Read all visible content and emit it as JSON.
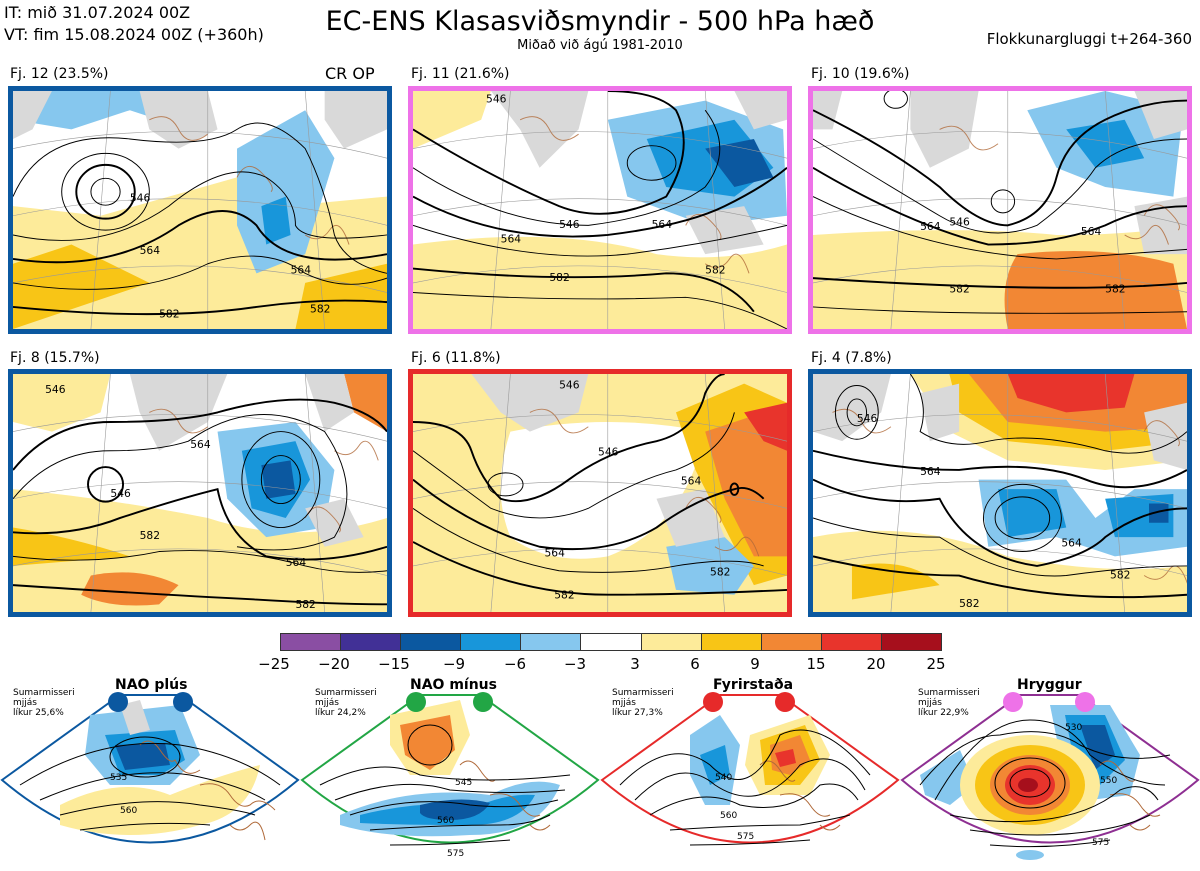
{
  "header": {
    "it_line": "IT: mið 31.07.2024 00Z",
    "vt_line": "VT: fim 15.08.2024 00Z  (+360h)",
    "title": "EC-ENS Klasasviðsmyndir - 500 hPa hæð",
    "subtitle": "Miðað við ágú 1981-2010",
    "window": "Flokkunargluggi t+264-360"
  },
  "panels": [
    {
      "label": "Fj. 12 (23.5%)",
      "frame_color": "#0b58a0",
      "extra": "CR OP",
      "contours": [
        "546",
        "564",
        "564",
        "582",
        "582"
      ]
    },
    {
      "label": "Fj. 11 (21.6%)",
      "frame_color": "#ee72e8",
      "contours": [
        "546",
        "546",
        "564",
        "564",
        "582",
        "582"
      ]
    },
    {
      "label": "Fj. 10 (19.6%)",
      "frame_color": "#ee72e8",
      "contours": [
        "546",
        "564",
        "564",
        "582",
        "582"
      ]
    },
    {
      "label": "Fj. 8 (15.7%)",
      "frame_color": "#0b58a0",
      "contours": [
        "546",
        "546",
        "564",
        "564",
        "582",
        "582"
      ]
    },
    {
      "label": "Fj. 6 (11.8%)",
      "frame_color": "#e62a2a",
      "contours": [
        "546",
        "546",
        "564",
        "564",
        "582",
        "582"
      ]
    },
    {
      "label": "Fj. 4 (7.8%)",
      "frame_color": "#0b58a0",
      "contours": [
        "546",
        "564",
        "564",
        "582",
        "582"
      ]
    }
  ],
  "colorbar": {
    "colors": [
      "#8a4ea3",
      "#413096",
      "#0b58a0",
      "#1896da",
      "#86c7ee",
      "#ffffff",
      "#fdeb9a",
      "#f8c516",
      "#f28734",
      "#e8342c",
      "#a60f1c"
    ],
    "ticks": [
      "−25",
      "−20",
      "−15",
      "−9",
      "−6",
      "−3",
      "3",
      "6",
      "9",
      "15",
      "20",
      "25"
    ]
  },
  "regimes": [
    {
      "title": "NAO plús",
      "note": [
        "Sumarmisseri",
        "mjjás",
        "líkur 25,6%"
      ],
      "color": "#0b58a0",
      "contours": [
        "535",
        "560"
      ]
    },
    {
      "title": "NAO mínus",
      "note": [
        "Sumarmisseri",
        "mjjás",
        "líkur 24,2%"
      ],
      "color": "#22a645",
      "contours": [
        "545",
        "560",
        "575"
      ]
    },
    {
      "title": "Fyrirstaða",
      "note": [
        "Sumarmisseri",
        "mjjás",
        "líkur 27,3%"
      ],
      "color": "#e62a2a",
      "contours": [
        "540",
        "560",
        "575"
      ]
    },
    {
      "title": "Hryggur",
      "note": [
        "Sumarmisseri",
        "mjjás",
        "líkur 22,9%"
      ],
      "color": "#8e2f92",
      "dot_color": "#ee72e8",
      "contours": [
        "530",
        "550",
        "575"
      ]
    }
  ]
}
